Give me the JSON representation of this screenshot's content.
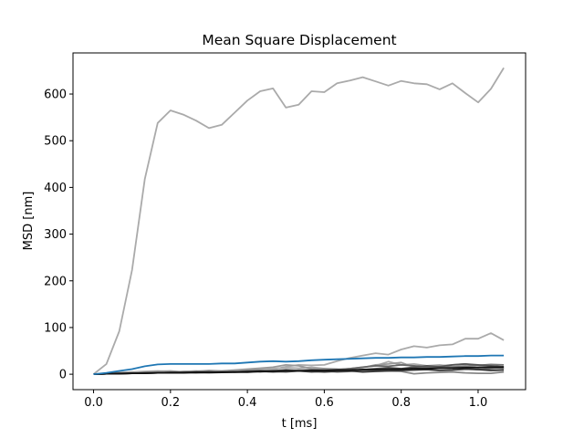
{
  "chart_data": {
    "type": "line",
    "title": "Mean Square Displacement",
    "xlabel": "t [ms]",
    "ylabel": "MSD [nm]",
    "xlim": [
      -0.0535,
      1.1235
    ],
    "ylim": [
      -33,
      688
    ],
    "x_ticks": [
      0.0,
      0.2,
      0.4,
      0.6,
      0.8,
      1.0
    ],
    "x_tick_labels": [
      "0.0",
      "0.2",
      "0.4",
      "0.6",
      "0.8",
      "1.0"
    ],
    "y_ticks": [
      0,
      100,
      200,
      300,
      400,
      500,
      600
    ],
    "y_tick_labels": [
      "0",
      "100",
      "200",
      "300",
      "400",
      "500",
      "600"
    ],
    "grid": false,
    "legend": false,
    "x": [
      0.0,
      0.0333,
      0.0667,
      0.1,
      0.1333,
      0.1667,
      0.2,
      0.2333,
      0.2667,
      0.3,
      0.3333,
      0.3667,
      0.4,
      0.4333,
      0.4667,
      0.5,
      0.5333,
      0.5667,
      0.6,
      0.6333,
      0.6667,
      0.7,
      0.7333,
      0.7667,
      0.8,
      0.8333,
      0.8667,
      0.9,
      0.9333,
      0.9667,
      1.0,
      1.0333,
      1.0667
    ],
    "series": [
      {
        "color": "#aaaaaa",
        "values": [
          0,
          22,
          92,
          223,
          418,
          538,
          565,
          556,
          543,
          527,
          534,
          560,
          586,
          606,
          612,
          571,
          577,
          606,
          604,
          623,
          629,
          636,
          627,
          618,
          628,
          623,
          621,
          610,
          623,
          602,
          582,
          611,
          656
        ]
      },
      {
        "color": "#aaaaaa",
        "values": [
          0,
          2,
          4,
          5,
          6,
          7,
          6,
          5,
          6,
          4,
          6,
          5,
          7,
          8,
          10,
          16,
          20,
          19,
          20,
          28,
          35,
          40,
          45,
          42,
          53,
          60,
          57,
          62,
          64,
          76,
          76,
          88,
          73
        ]
      },
      {
        "color": "#aaaaaa",
        "values": [
          0,
          1,
          2,
          3,
          4,
          5,
          4,
          6,
          7,
          6,
          5,
          7,
          9,
          10,
          12,
          14,
          13,
          15,
          12,
          10,
          12,
          15,
          18,
          27,
          20,
          22,
          18,
          20,
          16,
          18,
          14,
          16,
          12
        ]
      },
      {
        "color": "#999999",
        "values": [
          0,
          1,
          3,
          2,
          4,
          6,
          7,
          5,
          6,
          8,
          7,
          9,
          11,
          13,
          15,
          20,
          18,
          12,
          10,
          8,
          12,
          14,
          20,
          22,
          25,
          15,
          12,
          18,
          20,
          22,
          18,
          14,
          12
        ]
      },
      {
        "color": "#888888",
        "values": [
          0,
          1,
          1,
          2,
          3,
          4,
          3,
          5,
          4,
          5,
          6,
          5,
          4,
          6,
          8,
          7,
          9,
          10,
          12,
          11,
          9,
          8,
          10,
          7,
          6,
          1,
          3,
          4,
          5,
          3,
          2,
          2,
          5
        ]
      },
      {
        "color": "#777777",
        "values": [
          0,
          1,
          2,
          3,
          2,
          3,
          4,
          5,
          4,
          3,
          4,
          5,
          6,
          5,
          7,
          10,
          8,
          6,
          7,
          5,
          6,
          8,
          9,
          10,
          11,
          12,
          14,
          13,
          15,
          17,
          19,
          21,
          20
        ]
      },
      {
        "color": "#666666",
        "values": [
          0,
          1,
          2,
          2,
          3,
          3,
          4,
          3,
          5,
          6,
          4,
          5,
          7,
          8,
          6,
          5,
          7,
          9,
          8,
          10,
          12,
          15,
          18,
          17,
          20,
          18,
          16,
          14,
          15,
          12,
          10,
          12,
          14
        ]
      },
      {
        "color": "#555555",
        "values": [
          0,
          1,
          1,
          2,
          2,
          3,
          3,
          4,
          3,
          4,
          5,
          4,
          5,
          6,
          5,
          6,
          7,
          5,
          6,
          7,
          8,
          10,
          12,
          14,
          12,
          15,
          18,
          16,
          20,
          22,
          20,
          18,
          16
        ]
      },
      {
        "color": "#333333",
        "values": [
          0,
          1,
          2,
          2,
          3,
          3,
          4,
          4,
          5,
          4,
          5,
          5,
          6,
          6,
          7,
          8,
          7,
          6,
          5,
          6,
          7,
          5,
          6,
          7,
          8,
          9,
          10,
          8,
          9,
          11,
          10,
          8,
          9
        ]
      },
      {
        "color": "#111111",
        "values": [
          0,
          1,
          1,
          2,
          2,
          3,
          3,
          3,
          4,
          4,
          4,
          5,
          5,
          6,
          6,
          7,
          7,
          8,
          8,
          9,
          9,
          10,
          10,
          11,
          11,
          12,
          12,
          13,
          13,
          14,
          14,
          15,
          15
        ]
      },
      {
        "color": "#1f77b4",
        "values": [
          0,
          3,
          7,
          11,
          17,
          21,
          22,
          22,
          22,
          22,
          23,
          23,
          25,
          27,
          28,
          27,
          28,
          30,
          31,
          32,
          33,
          34,
          35,
          35,
          36,
          36,
          37,
          37,
          38,
          39,
          39,
          40,
          40
        ]
      }
    ]
  }
}
